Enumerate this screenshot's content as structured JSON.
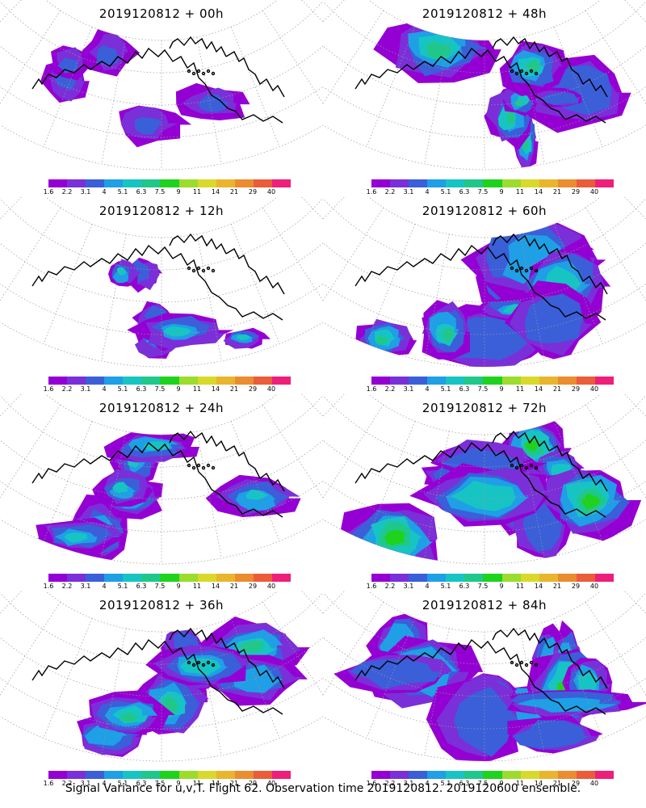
{
  "panels": [
    {
      "title": "2019120812 + 00h",
      "coverage": 0.15,
      "peak": 0.25
    },
    {
      "title": "2019120812 + 48h",
      "coverage": 0.55,
      "peak": 0.55
    },
    {
      "title": "2019120812 + 12h",
      "coverage": 0.28,
      "peak": 0.4
    },
    {
      "title": "2019120812 + 60h",
      "coverage": 0.72,
      "peak": 0.58
    },
    {
      "title": "2019120812 + 24h",
      "coverage": 0.38,
      "peak": 0.45
    },
    {
      "title": "2019120812 + 72h",
      "coverage": 0.82,
      "peak": 0.65
    },
    {
      "title": "2019120812 + 36h",
      "coverage": 0.48,
      "peak": 0.5
    },
    {
      "title": "2019120812 + 84h",
      "coverage": 0.92,
      "peak": 0.72
    }
  ],
  "colorbar": {
    "ticks": [
      "1.6",
      "2.2",
      "3.1",
      "4",
      "5.1",
      "6.3",
      "7.5",
      "9",
      "11",
      "14",
      "21",
      "29",
      "40"
    ],
    "colors": [
      "#9400d3",
      "#7b2fd8",
      "#3a5fd9",
      "#1e9fe6",
      "#17c4c4",
      "#1fc88a",
      "#1ed21e",
      "#9bdc2c",
      "#d9d92b",
      "#e8b52d",
      "#ea8c2f",
      "#ea5c3a",
      "#ee1f7a"
    ]
  },
  "footer": "Signal Variance for u,v,T. Flight 62. Observation time 2019120812. 2019120600 ensemble."
}
